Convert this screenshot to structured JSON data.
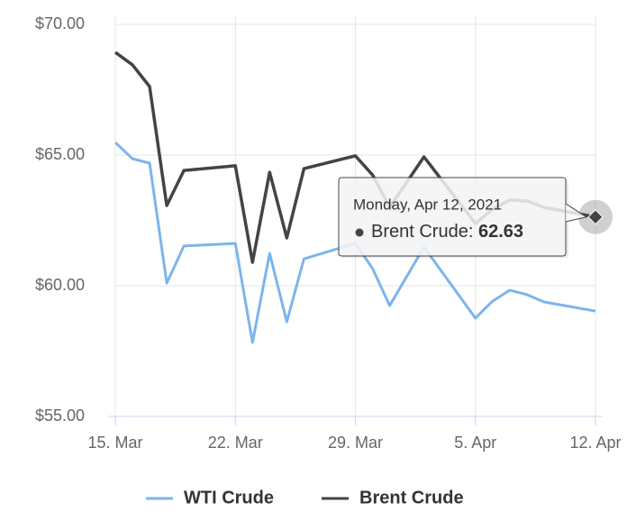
{
  "chart_data": {
    "type": "line",
    "x": [
      "2021-03-15",
      "2021-03-16",
      "2021-03-17",
      "2021-03-18",
      "2021-03-19",
      "2021-03-22",
      "2021-03-23",
      "2021-03-24",
      "2021-03-25",
      "2021-03-26",
      "2021-03-29",
      "2021-03-30",
      "2021-03-31",
      "2021-04-02",
      "2021-04-05",
      "2021-04-06",
      "2021-04-07",
      "2021-04-08",
      "2021-04-09",
      "2021-04-12"
    ],
    "series": [
      {
        "name": "WTI Crude",
        "color": "#7cb5ec",
        "values": [
          65.48,
          64.86,
          64.69,
          60.1,
          61.52,
          61.62,
          57.83,
          61.24,
          58.62,
          61.03,
          61.62,
          60.66,
          59.24,
          61.48,
          58.76,
          59.41,
          59.83,
          59.66,
          59.38,
          59.03
        ]
      },
      {
        "name": "Brent Crude",
        "color": "#434348",
        "values": [
          68.93,
          68.45,
          67.62,
          63.07,
          64.41,
          64.59,
          60.9,
          64.34,
          61.83,
          64.48,
          64.97,
          64.24,
          63.0,
          64.93,
          62.38,
          62.93,
          63.28,
          63.24,
          63.0,
          62.63
        ]
      }
    ],
    "xlim": [
      "2021-03-15",
      "2021-04-12"
    ],
    "xticks": [
      {
        "value": "2021-03-15",
        "label": "15. Mar"
      },
      {
        "value": "2021-03-22",
        "label": "22. Mar"
      },
      {
        "value": "2021-03-29",
        "label": "29. Mar"
      },
      {
        "value": "2021-04-05",
        "label": "5. Apr"
      },
      {
        "value": "2021-04-12",
        "label": "12. Apr"
      }
    ],
    "ylim": [
      55,
      70
    ],
    "yticks": [
      {
        "value": 55,
        "label": "$55.00"
      },
      {
        "value": 60,
        "label": "$60.00"
      },
      {
        "value": 65,
        "label": "$65.00"
      },
      {
        "value": 70,
        "label": "$70.00"
      }
    ],
    "grid": true,
    "legend": "bottom",
    "tooltip": {
      "date": "Monday, Apr 12, 2021",
      "label": "Brent Crude:",
      "value": 62.63
    }
  }
}
